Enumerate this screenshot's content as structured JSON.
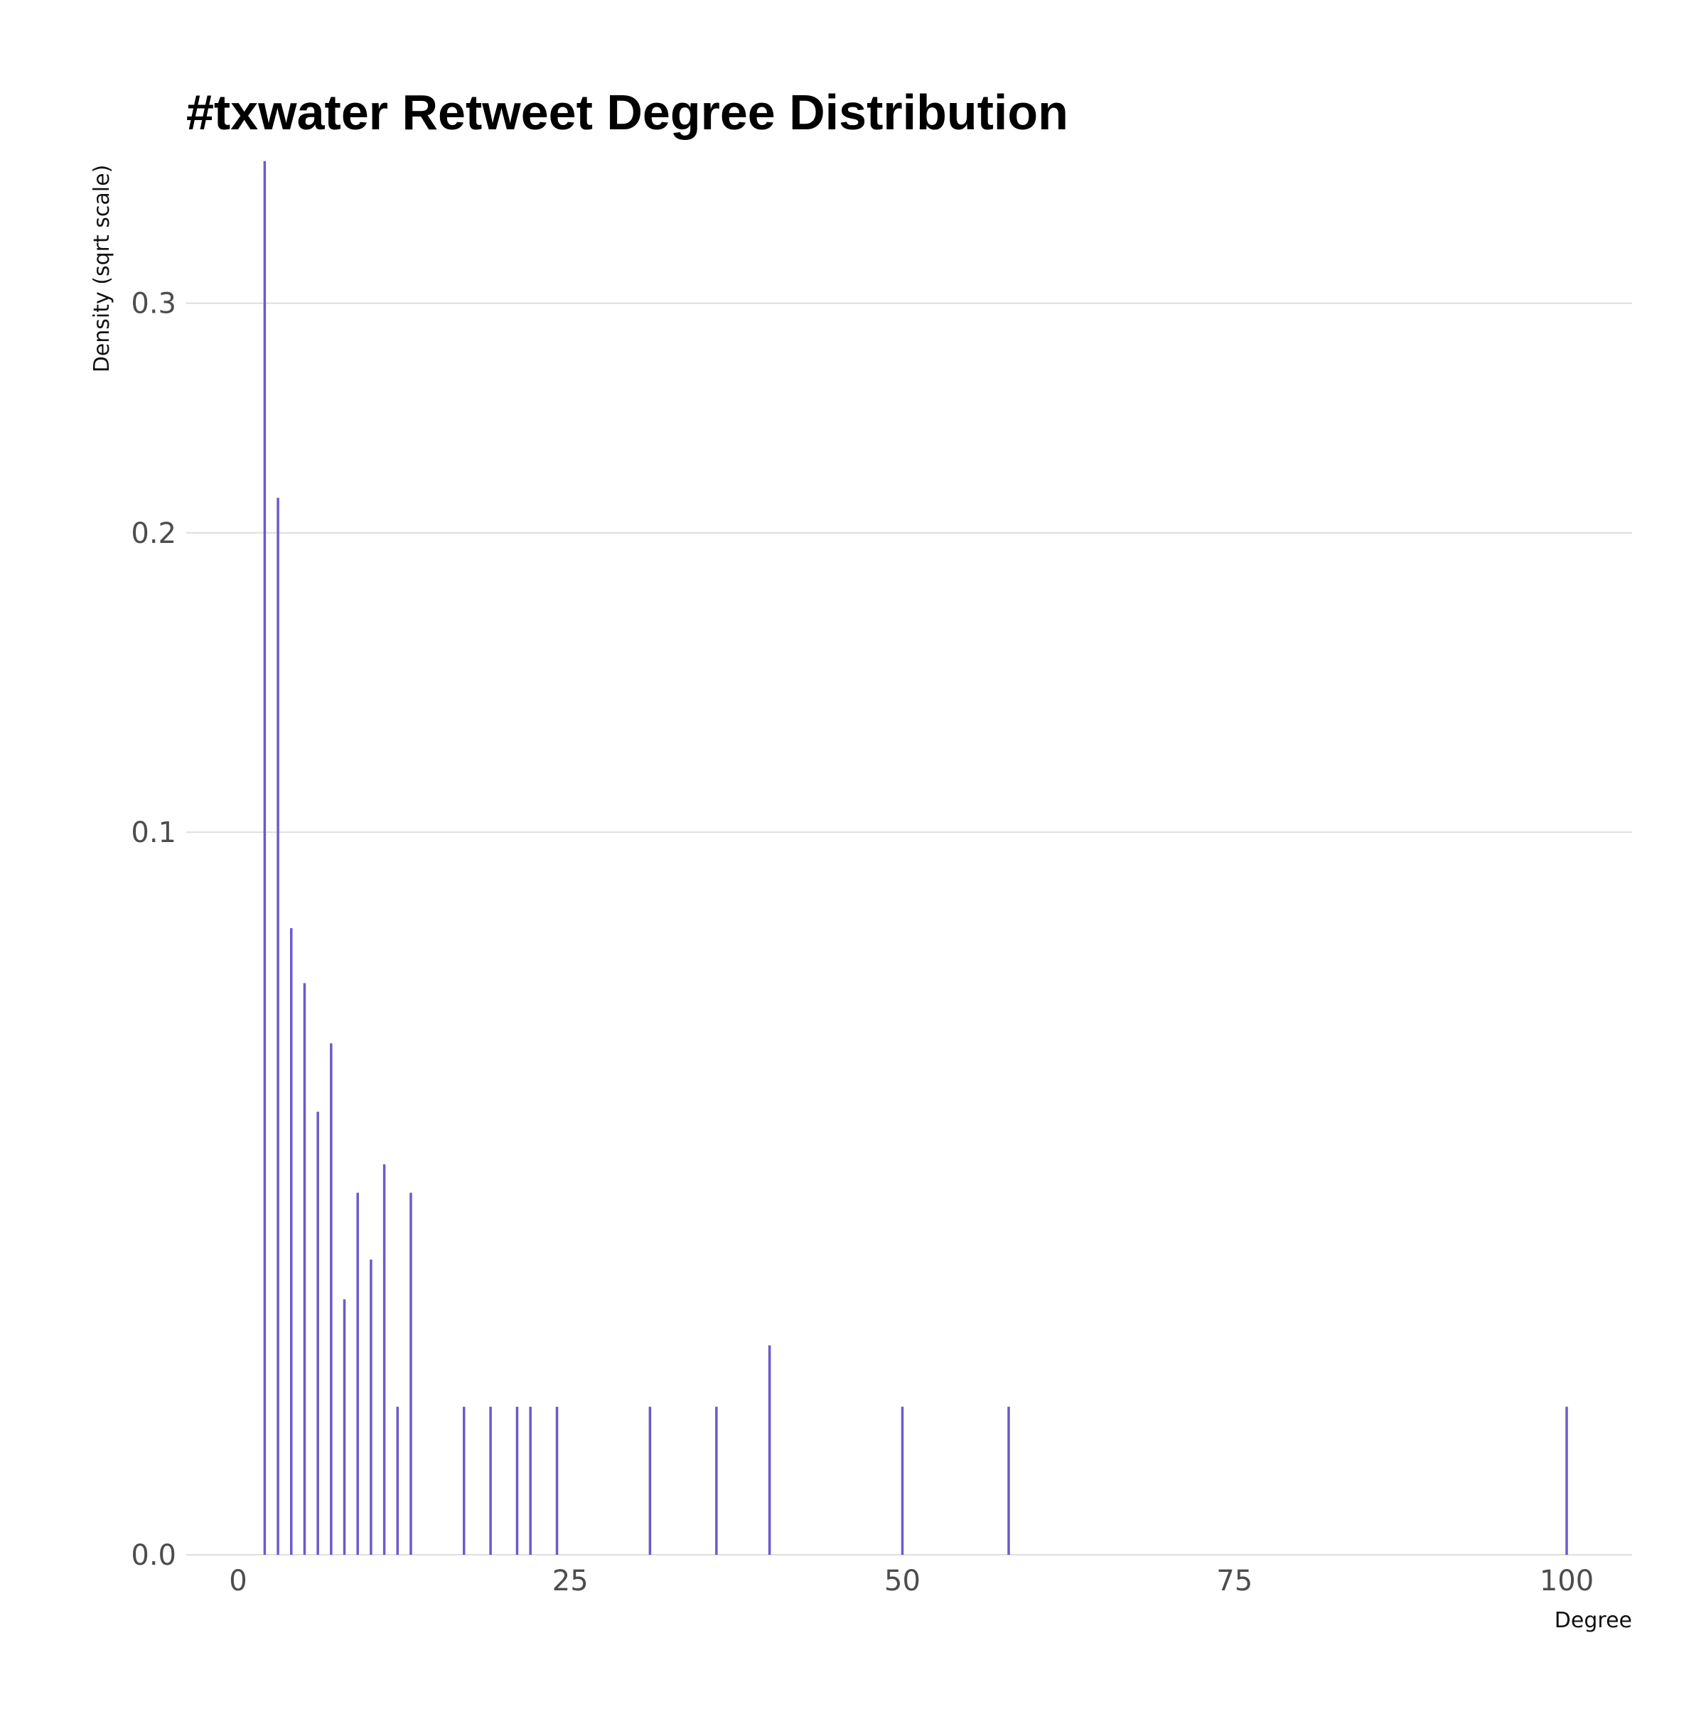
{
  "chart_data": {
    "type": "bar",
    "title": "#txwater Retweet Degree Distribution",
    "xlabel": "Degree",
    "ylabel": "Density (sqrt scale)",
    "y_scale": "sqrt",
    "xlim": [
      0,
      105
    ],
    "ylim": [
      0,
      0.37
    ],
    "x_ticks": [
      0,
      25,
      50,
      75,
      100
    ],
    "x_tick_labels": [
      "0",
      "25",
      "50",
      "75",
      "100"
    ],
    "y_ticks": [
      0.0,
      0.1,
      0.2,
      0.3
    ],
    "y_tick_labels": [
      "0.0",
      "0.1",
      "0.2",
      "0.3"
    ],
    "grid": "horizontal",
    "legend": "none",
    "bar_color": "#6a5acd",
    "points": [
      {
        "x": 2,
        "y": 0.372
      },
      {
        "x": 3,
        "y": 0.214
      },
      {
        "x": 4,
        "y": 0.0752
      },
      {
        "x": 5,
        "y": 0.0626
      },
      {
        "x": 6,
        "y": 0.0376
      },
      {
        "x": 7,
        "y": 0.0501
      },
      {
        "x": 8,
        "y": 0.0125
      },
      {
        "x": 9,
        "y": 0.0251
      },
      {
        "x": 10,
        "y": 0.0167
      },
      {
        "x": 11,
        "y": 0.0292
      },
      {
        "x": 12,
        "y": 0.0042
      },
      {
        "x": 13,
        "y": 0.0251
      },
      {
        "x": 17,
        "y": 0.0042
      },
      {
        "x": 19,
        "y": 0.0042
      },
      {
        "x": 21,
        "y": 0.0042
      },
      {
        "x": 22,
        "y": 0.0042
      },
      {
        "x": 24,
        "y": 0.0042
      },
      {
        "x": 31,
        "y": 0.0042
      },
      {
        "x": 36,
        "y": 0.0042
      },
      {
        "x": 40,
        "y": 0.0084
      },
      {
        "x": 50,
        "y": 0.0042
      },
      {
        "x": 58,
        "y": 0.0042
      },
      {
        "x": 100,
        "y": 0.0042
      }
    ]
  }
}
